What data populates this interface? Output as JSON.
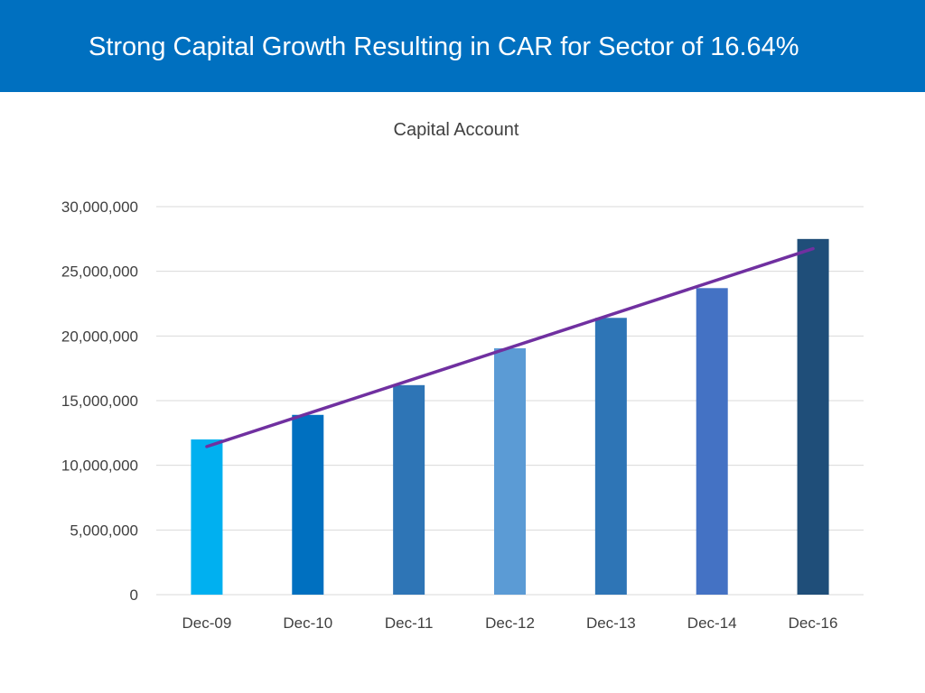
{
  "header": {
    "title": "Strong Capital Growth Resulting in CAR for Sector of 16.64%"
  },
  "chart_data": {
    "type": "bar",
    "title": "Capital Account",
    "categories": [
      "Dec-09",
      "Dec-10",
      "Dec-11",
      "Dec-12",
      "Dec-13",
      "Dec-14",
      "Dec-16"
    ],
    "values": [
      12000000,
      13900000,
      16200000,
      19050000,
      21400000,
      23700000,
      27500000
    ],
    "bar_colors": [
      "#00b0f0",
      "#0070c0",
      "#2e75b6",
      "#5b9bd5",
      "#2e75b6",
      "#4472c4",
      "#1f4e79"
    ],
    "ylim": [
      0,
      30000000
    ],
    "yticks": [
      0,
      5000000,
      10000000,
      15000000,
      20000000,
      25000000,
      30000000
    ],
    "ytick_labels": [
      "0",
      "5,000,000",
      "10,000,000",
      "15,000,000",
      "20,000,000",
      "25,000,000",
      "30,000,000"
    ],
    "trendline": {
      "type": "linear",
      "start_value": 11450000,
      "end_value": 26750000,
      "color": "#7030a0"
    },
    "xlabel": "",
    "ylabel": "",
    "grid": true,
    "legend": "none"
  }
}
